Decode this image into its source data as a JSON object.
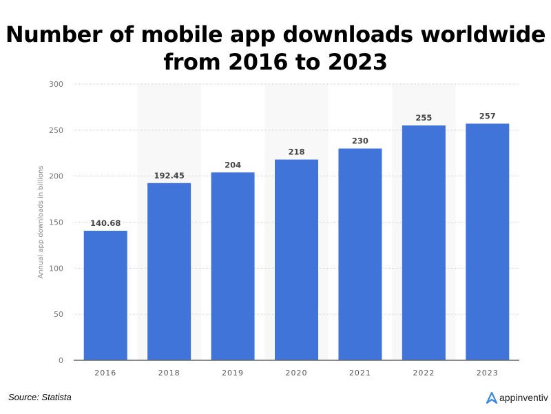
{
  "chart_data": {
    "type": "bar",
    "title": "Number of mobile app downloads worldwide from 2016 to 2023",
    "categories": [
      "2016",
      "2018",
      "2019",
      "2020",
      "2021",
      "2022",
      "2023"
    ],
    "values": [
      140.68,
      192.45,
      204,
      218,
      230,
      255,
      257
    ],
    "value_labels": [
      "140.68",
      "192.45",
      "204",
      "218",
      "230",
      "255",
      "257"
    ],
    "ylabel": "Annual app downloads in billions",
    "xlabel": "",
    "ylim": [
      0,
      300
    ],
    "yticks": [
      0,
      50,
      100,
      150,
      200,
      250,
      300
    ],
    "grid": true,
    "bar_color": "#4174d9"
  },
  "source": "Source: Statista",
  "brand": "appinventiv"
}
